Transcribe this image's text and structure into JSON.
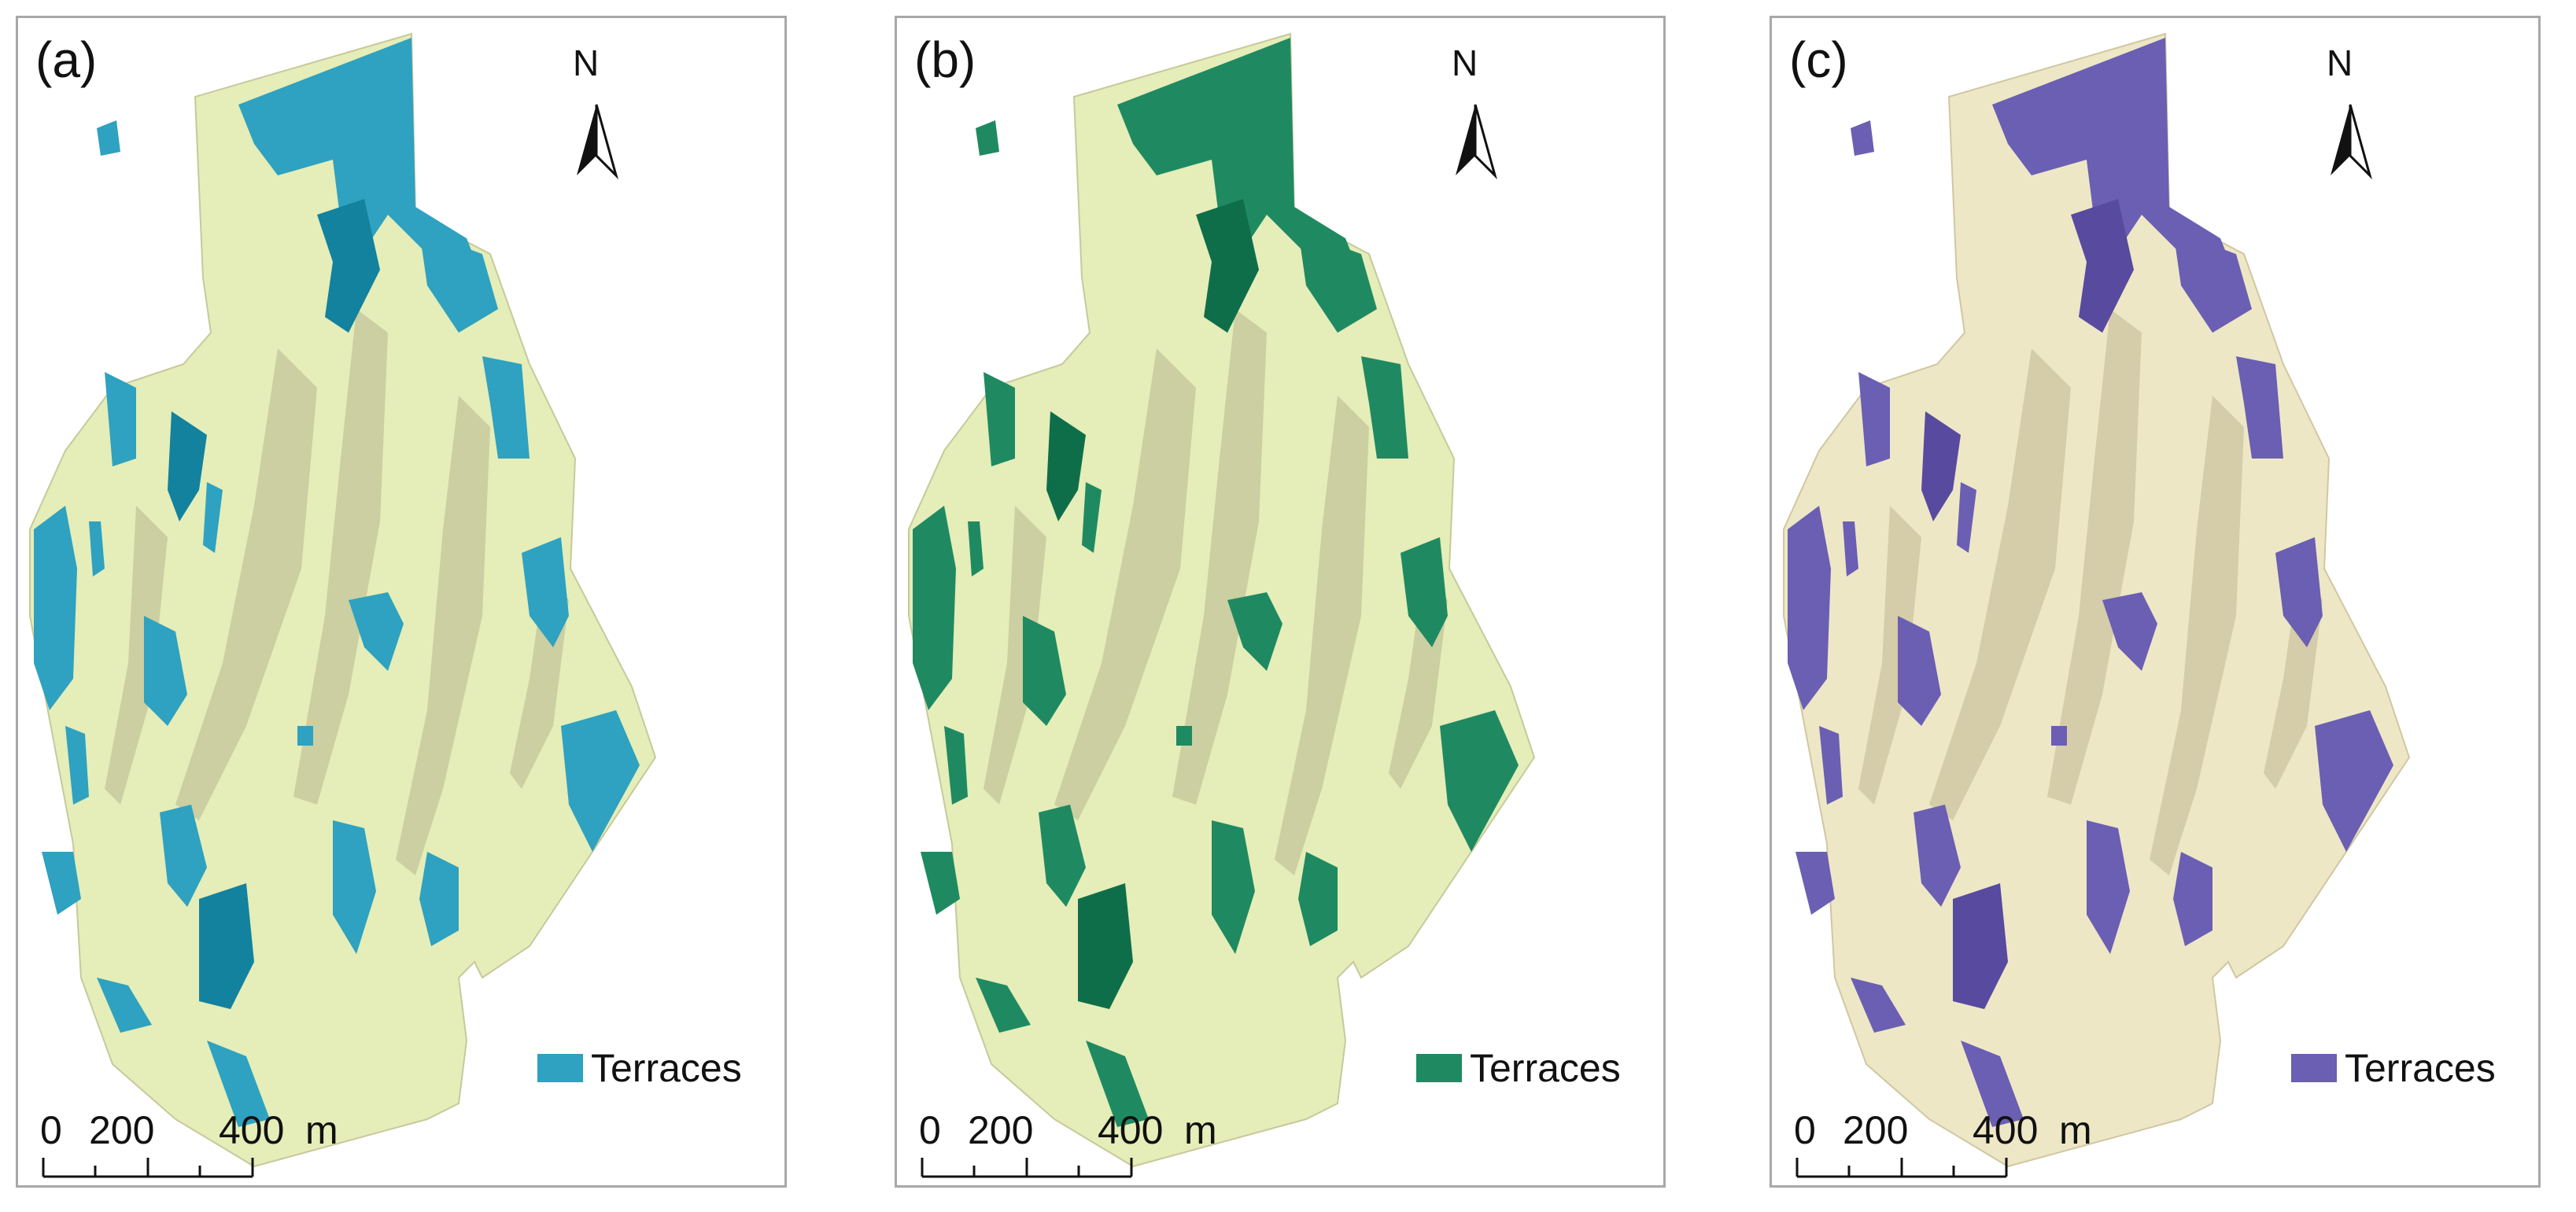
{
  "panels": [
    {
      "label": "(a)",
      "legend_label": "Terraces",
      "terrace_color": "#2ea2c0",
      "terrace_dark": "#12829f",
      "land_color": "#e5edb8",
      "ridge_color": "#c7c99c"
    },
    {
      "label": "(b)",
      "legend_label": "Terraces",
      "terrace_color": "#1f8a62",
      "terrace_dark": "#0f6e4a",
      "land_color": "#e5edb8",
      "ridge_color": "#c7c99c"
    },
    {
      "label": "(c)",
      "legend_label": "Terraces",
      "terrace_color": "#6a5fb3",
      "terrace_dark": "#574a9f",
      "land_color": "#eee7c6",
      "ridge_color": "#d0c7a3"
    }
  ],
  "north_label": "N",
  "scale": {
    "tick0": "0",
    "tick1": "200",
    "tick2": "400",
    "unit": "m"
  },
  "icons": {
    "north": "north-arrow-icon"
  }
}
